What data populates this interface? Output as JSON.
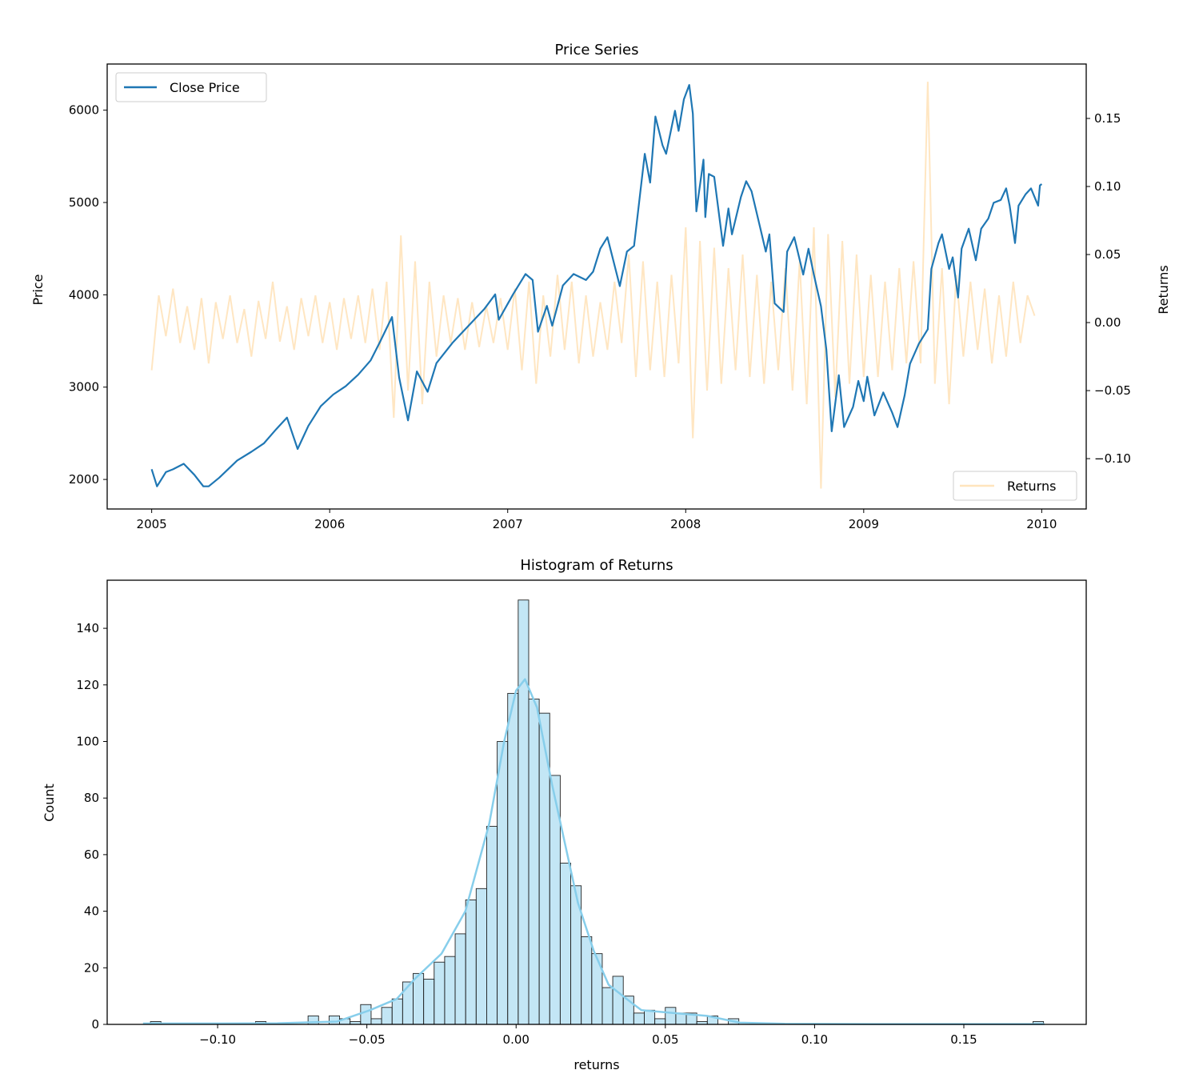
{
  "chart_data": [
    {
      "type": "line",
      "title": "Price Series",
      "xlabel": "",
      "ylabel": "Price",
      "y2label": "Returns",
      "xlim": [
        2004.75,
        2010.25
      ],
      "ylim": [
        1680,
        6500
      ],
      "y2lim": [
        -0.137,
        0.19
      ],
      "xticks": [
        2005,
        2006,
        2007,
        2008,
        2009,
        2010
      ],
      "xtick_labels": [
        "2005",
        "2006",
        "2007",
        "2008",
        "2009",
        "2010"
      ],
      "yticks": [
        2000,
        3000,
        4000,
        5000,
        6000
      ],
      "ytick_labels": [
        "2000",
        "3000",
        "4000",
        "5000",
        "6000"
      ],
      "y2ticks": [
        -0.1,
        -0.05,
        0.0,
        0.05,
        0.1,
        0.15
      ],
      "y2tick_labels": [
        "−0.10",
        "−0.05",
        "0.00",
        "0.05",
        "0.10",
        "0.15"
      ],
      "grid": false,
      "legend": [
        {
          "name": "Close Price",
          "placement": "top-left"
        },
        {
          "name": "Returns",
          "placement": "bottom-right"
        }
      ],
      "colors": {
        "price": "#1f77b4",
        "returns": "#ffdead"
      },
      "series": [
        {
          "name": "Close Price",
          "axis": "left",
          "points": [
            [
              2005.0,
              2111
            ],
            [
              2005.03,
              1925
            ],
            [
              2005.08,
              2080
            ],
            [
              2005.12,
              2110
            ],
            [
              2005.18,
              2170
            ],
            [
              2005.24,
              2050
            ],
            [
              2005.29,
              1925
            ],
            [
              2005.32,
              1925
            ],
            [
              2005.38,
              2020
            ],
            [
              2005.48,
              2205
            ],
            [
              2005.56,
              2300
            ],
            [
              2005.63,
              2390
            ],
            [
              2005.7,
              2545
            ],
            [
              2005.76,
              2670
            ],
            [
              2005.82,
              2330
            ],
            [
              2005.88,
              2580
            ],
            [
              2005.95,
              2795
            ],
            [
              2006.02,
              2920
            ],
            [
              2006.09,
              3010
            ],
            [
              2006.16,
              3135
            ],
            [
              2006.23,
              3290
            ],
            [
              2006.28,
              3480
            ],
            [
              2006.35,
              3760
            ],
            [
              2006.39,
              3105
            ],
            [
              2006.44,
              2640
            ],
            [
              2006.49,
              3170
            ],
            [
              2006.55,
              2950
            ],
            [
              2006.6,
              3260
            ],
            [
              2006.69,
              3480
            ],
            [
              2006.78,
              3665
            ],
            [
              2006.87,
              3850
            ],
            [
              2006.93,
              4005
            ],
            [
              2006.95,
              3730
            ],
            [
              2007.03,
              4005
            ],
            [
              2007.1,
              4225
            ],
            [
              2007.14,
              4160
            ],
            [
              2007.17,
              3600
            ],
            [
              2007.22,
              3880
            ],
            [
              2007.25,
              3665
            ],
            [
              2007.31,
              4100
            ],
            [
              2007.37,
              4225
            ],
            [
              2007.44,
              4160
            ],
            [
              2007.48,
              4250
            ],
            [
              2007.52,
              4500
            ],
            [
              2007.56,
              4624
            ],
            [
              2007.63,
              4094
            ],
            [
              2007.67,
              4468
            ],
            [
              2007.71,
              4530
            ],
            [
              2007.74,
              5028
            ],
            [
              2007.77,
              5527
            ],
            [
              2007.8,
              5215
            ],
            [
              2007.83,
              5931
            ],
            [
              2007.87,
              5620
            ],
            [
              2007.89,
              5527
            ],
            [
              2007.94,
              5994
            ],
            [
              2007.96,
              5776
            ],
            [
              2007.99,
              6118
            ],
            [
              2008.02,
              6274
            ],
            [
              2008.04,
              5963
            ],
            [
              2008.06,
              4904
            ],
            [
              2008.1,
              5464
            ],
            [
              2008.11,
              4842
            ],
            [
              2008.13,
              5309
            ],
            [
              2008.16,
              5278
            ],
            [
              2008.21,
              4530
            ],
            [
              2008.24,
              4935
            ],
            [
              2008.26,
              4655
            ],
            [
              2008.31,
              5060
            ],
            [
              2008.34,
              5231
            ],
            [
              2008.37,
              5122
            ],
            [
              2008.42,
              4717
            ],
            [
              2008.45,
              4468
            ],
            [
              2008.47,
              4655
            ],
            [
              2008.5,
              3907
            ],
            [
              2008.55,
              3814
            ],
            [
              2008.57,
              4468
            ],
            [
              2008.61,
              4624
            ],
            [
              2008.66,
              4219
            ],
            [
              2008.69,
              4499
            ],
            [
              2008.72,
              4219
            ],
            [
              2008.76,
              3876
            ],
            [
              2008.79,
              3409
            ],
            [
              2008.82,
              2522
            ],
            [
              2008.86,
              3129
            ],
            [
              2008.89,
              2568
            ],
            [
              2008.94,
              2786
            ],
            [
              2008.97,
              3067
            ],
            [
              2009.0,
              2849
            ],
            [
              2009.02,
              3113
            ],
            [
              2009.06,
              2693
            ],
            [
              2009.11,
              2942
            ],
            [
              2009.16,
              2724
            ],
            [
              2009.19,
              2568
            ],
            [
              2009.23,
              2911
            ],
            [
              2009.26,
              3253
            ],
            [
              2009.31,
              3471
            ],
            [
              2009.36,
              3627
            ],
            [
              2009.38,
              4281
            ],
            [
              2009.42,
              4561
            ],
            [
              2009.44,
              4655
            ],
            [
              2009.48,
              4281
            ],
            [
              2009.5,
              4406
            ],
            [
              2009.53,
              3970
            ],
            [
              2009.55,
              4499
            ],
            [
              2009.59,
              4717
            ],
            [
              2009.63,
              4374
            ],
            [
              2009.66,
              4717
            ],
            [
              2009.7,
              4826
            ],
            [
              2009.73,
              4997
            ],
            [
              2009.77,
              5028
            ],
            [
              2009.8,
              5153
            ],
            [
              2009.82,
              4966
            ],
            [
              2009.85,
              4561
            ],
            [
              2009.87,
              4966
            ],
            [
              2009.91,
              5090
            ],
            [
              2009.94,
              5153
            ],
            [
              2009.98,
              4966
            ],
            [
              2009.99,
              5184
            ],
            [
              2010.0,
              5200
            ]
          ]
        },
        {
          "name": "Returns",
          "axis": "right",
          "start": 2005.0,
          "step": 0.04,
          "values": [
            -0.035,
            0.02,
            -0.01,
            0.025,
            -0.015,
            0.012,
            -0.02,
            0.018,
            -0.03,
            0.015,
            -0.012,
            0.02,
            -0.015,
            0.01,
            -0.025,
            0.016,
            -0.012,
            0.03,
            -0.014,
            0.012,
            -0.02,
            0.018,
            -0.01,
            0.02,
            -0.015,
            0.015,
            -0.02,
            0.018,
            -0.012,
            0.02,
            -0.015,
            0.025,
            -0.02,
            0.03,
            -0.07,
            0.064,
            -0.05,
            0.045,
            -0.06,
            0.03,
            -0.025,
            0.02,
            -0.015,
            0.018,
            -0.02,
            0.015,
            -0.018,
            0.012,
            -0.015,
            0.018,
            -0.02,
            0.025,
            -0.035,
            0.03,
            -0.045,
            0.02,
            -0.025,
            0.035,
            -0.02,
            0.03,
            -0.03,
            0.02,
            -0.025,
            0.015,
            -0.02,
            0.03,
            -0.015,
            0.05,
            -0.04,
            0.045,
            -0.035,
            0.03,
            -0.04,
            0.035,
            -0.03,
            0.07,
            -0.085,
            0.06,
            -0.05,
            0.055,
            -0.045,
            0.04,
            -0.035,
            0.05,
            -0.04,
            0.035,
            -0.045,
            0.03,
            -0.035,
            0.04,
            -0.05,
            0.045,
            -0.06,
            0.07,
            -0.122,
            0.065,
            -0.055,
            0.06,
            -0.045,
            0.05,
            -0.04,
            0.035,
            -0.04,
            0.03,
            -0.035,
            0.04,
            -0.03,
            0.045,
            -0.03,
            0.177,
            -0.045,
            0.04,
            -0.06,
            0.035,
            -0.025,
            0.03,
            -0.02,
            0.025,
            -0.03,
            0.02,
            -0.025,
            0.03,
            -0.015,
            0.02,
            0.005
          ]
        }
      ]
    },
    {
      "type": "bar",
      "subtype": "histogram",
      "title": "Histogram of Returns",
      "xlabel": "returns",
      "ylabel": "Count",
      "xlim": [
        -0.137,
        0.191
      ],
      "ylim": [
        0,
        157
      ],
      "xticks": [
        -0.1,
        -0.05,
        0.0,
        0.05,
        0.1,
        0.15
      ],
      "xtick_labels": [
        "−0.10",
        "−0.05",
        "0.00",
        "0.05",
        "0.10",
        "0.15"
      ],
      "yticks": [
        0,
        20,
        40,
        60,
        80,
        100,
        120,
        140
      ],
      "ytick_labels": [
        "0",
        "20",
        "40",
        "60",
        "80",
        "100",
        "120",
        "140"
      ],
      "grid": false,
      "colors": {
        "bar": "#87ceeb",
        "kde": "#87ceeb"
      },
      "bin_start": -0.1225,
      "bin_width": 0.00352,
      "counts": [
        1,
        0,
        0,
        0,
        0,
        0,
        0,
        0,
        0,
        0,
        1,
        0,
        0,
        0,
        0,
        3,
        0,
        3,
        2,
        1,
        7,
        2,
        6,
        9,
        15,
        18,
        16,
        22,
        24,
        32,
        44,
        48,
        70,
        100,
        117,
        150,
        115,
        110,
        88,
        57,
        49,
        31,
        25,
        13,
        17,
        10,
        4,
        5,
        2,
        6,
        4,
        4,
        1,
        3,
        0,
        2,
        0,
        0,
        0,
        0,
        0,
        0,
        0,
        0,
        0,
        0,
        0,
        0,
        0,
        0,
        0,
        0,
        0,
        0,
        0,
        0,
        0,
        0,
        0,
        0,
        0,
        0,
        0,
        0,
        1
      ],
      "kde": [
        [
          -0.125,
          0.3
        ],
        [
          -0.1,
          0.3
        ],
        [
          -0.08,
          0.4
        ],
        [
          -0.06,
          1
        ],
        [
          -0.049,
          5
        ],
        [
          -0.04,
          9
        ],
        [
          -0.034,
          16
        ],
        [
          -0.025,
          25
        ],
        [
          -0.017,
          40
        ],
        [
          -0.009,
          71
        ],
        [
          -0.004,
          100
        ],
        [
          0.0,
          118
        ],
        [
          0.003,
          122
        ],
        [
          0.007,
          112
        ],
        [
          0.012,
          85
        ],
        [
          0.0207,
          43
        ],
        [
          0.026,
          26
        ],
        [
          0.031,
          14
        ],
        [
          0.0395,
          7
        ],
        [
          0.042,
          5
        ],
        [
          0.053,
          4
        ],
        [
          0.064,
          3
        ],
        [
          0.075,
          0.6
        ],
        [
          0.09,
          0.2
        ],
        [
          0.12,
          0.1
        ],
        [
          0.177,
          0.1
        ]
      ]
    }
  ]
}
